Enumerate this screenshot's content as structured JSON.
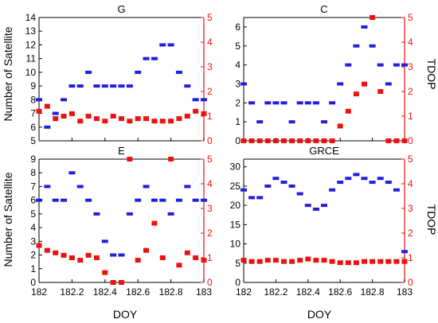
{
  "figure": {
    "shared_xlabel": "DOY",
    "left_ylabel": "Number of Satellite",
    "right_ylabel": "TDOP"
  },
  "colors": {
    "satellites": "#1f1fe0",
    "tdop": "#ee1111",
    "axis": "#000000"
  },
  "chart_data": [
    {
      "type": "scatter",
      "title": "G",
      "xlim": [
        182.0,
        183.0
      ],
      "ylim_left": [
        5,
        14
      ],
      "ylim_right": [
        0,
        5
      ],
      "yticks_left": [
        5,
        6,
        7,
        8,
        9,
        10,
        11,
        12,
        13,
        14
      ],
      "yticks_right": [
        0,
        1,
        2,
        3,
        4,
        5
      ],
      "xticks": [
        182.0,
        182.2,
        182.4,
        182.6,
        182.8,
        183.0
      ],
      "series": [
        {
          "axis": "left",
          "x": [
            182.0,
            182.05,
            182.1,
            182.15,
            182.2,
            182.25,
            182.3,
            182.35,
            182.4,
            182.45,
            182.5,
            182.55,
            182.6,
            182.65,
            182.7,
            182.75,
            182.8,
            182.85,
            182.9,
            182.95,
            183.0
          ],
          "values": [
            8,
            6,
            7,
            8,
            9,
            9,
            10,
            9,
            9,
            9,
            9,
            9,
            10,
            11,
            11,
            12,
            12,
            10,
            9,
            8,
            8
          ]
        },
        {
          "axis": "right",
          "x": [
            182.0,
            182.05,
            182.1,
            182.15,
            182.2,
            182.25,
            182.3,
            182.35,
            182.4,
            182.45,
            182.5,
            182.55,
            182.6,
            182.65,
            182.7,
            182.75,
            182.8,
            182.85,
            182.9,
            182.95,
            183.0
          ],
          "values": [
            1.2,
            1.4,
            0.9,
            1.0,
            1.1,
            0.8,
            1.0,
            0.9,
            0.8,
            1.0,
            0.9,
            0.8,
            0.9,
            0.9,
            0.8,
            0.8,
            0.8,
            0.9,
            1.0,
            1.2,
            1.1
          ]
        }
      ]
    },
    {
      "type": "scatter",
      "title": "C",
      "xlim": [
        182.0,
        183.0
      ],
      "ylim_left": [
        0,
        6.5
      ],
      "ylim_right": [
        0,
        5
      ],
      "yticks_left": [
        0,
        1,
        2,
        3,
        4,
        5,
        6
      ],
      "yticks_right": [
        0,
        1,
        2,
        3,
        4,
        5
      ],
      "xticks": [
        182.0,
        182.2,
        182.4,
        182.6,
        182.8,
        183.0
      ],
      "series": [
        {
          "axis": "left",
          "x": [
            182.0,
            182.05,
            182.1,
            182.15,
            182.2,
            182.25,
            182.3,
            182.35,
            182.4,
            182.45,
            182.5,
            182.55,
            182.6,
            182.65,
            182.7,
            182.75,
            182.8,
            182.85,
            182.9,
            182.95,
            183.0
          ],
          "values": [
            3,
            2,
            1,
            2,
            2,
            2,
            1,
            2,
            2,
            2,
            1,
            2,
            3,
            4,
            5,
            6,
            5,
            4,
            3,
            4,
            4
          ]
        },
        {
          "axis": "right",
          "x": [
            182.0,
            182.05,
            182.1,
            182.15,
            182.2,
            182.25,
            182.3,
            182.35,
            182.4,
            182.45,
            182.5,
            182.55,
            182.6,
            182.65,
            182.7,
            182.75,
            182.8,
            182.85,
            182.9,
            182.95,
            183.0
          ],
          "values": [
            0,
            0,
            0,
            0,
            0,
            0,
            0,
            0,
            0,
            0,
            0,
            0,
            0.6,
            1.2,
            1.9,
            2.3,
            5.0,
            2.0,
            0,
            0,
            0
          ]
        }
      ]
    },
    {
      "type": "scatter",
      "title": "E",
      "xlim": [
        182.0,
        183.0
      ],
      "ylim_left": [
        0,
        9
      ],
      "ylim_right": [
        0,
        5
      ],
      "yticks_left": [
        0,
        1,
        2,
        3,
        4,
        5,
        6,
        7,
        8,
        9
      ],
      "yticks_right": [
        0,
        1,
        2,
        3,
        4,
        5
      ],
      "xticks": [
        182.0,
        182.2,
        182.4,
        182.6,
        182.8,
        183.0
      ],
      "series": [
        {
          "axis": "left",
          "x": [
            182.0,
            182.05,
            182.1,
            182.15,
            182.2,
            182.25,
            182.3,
            182.35,
            182.4,
            182.45,
            182.5,
            182.55,
            182.6,
            182.65,
            182.7,
            182.75,
            182.8,
            182.85,
            182.9,
            182.95,
            183.0
          ],
          "values": [
            6,
            7,
            6,
            6,
            8,
            7,
            6,
            5,
            3,
            2,
            2,
            5,
            6,
            7,
            6,
            6,
            5,
            6,
            7,
            6,
            6
          ]
        },
        {
          "axis": "right",
          "x": [
            182.0,
            182.05,
            182.1,
            182.15,
            182.2,
            182.25,
            182.3,
            182.35,
            182.4,
            182.45,
            182.5,
            182.55,
            182.6,
            182.65,
            182.7,
            182.75,
            182.8,
            182.85,
            182.9,
            182.95,
            183.0
          ],
          "values": [
            1.5,
            1.3,
            1.2,
            1.1,
            1.0,
            0.9,
            1.1,
            1.0,
            0.4,
            0,
            0,
            5.0,
            0.9,
            1.3,
            2.4,
            1.0,
            5.0,
            0.7,
            1.2,
            1.0,
            0.9
          ]
        }
      ]
    },
    {
      "type": "scatter",
      "title": "GRCE",
      "xlim": [
        182.0,
        183.0
      ],
      "ylim_left": [
        0,
        32
      ],
      "ylim_right": [
        0,
        5
      ],
      "yticks_left": [
        0,
        5,
        10,
        15,
        20,
        25,
        30
      ],
      "yticks_right": [
        0,
        1,
        2,
        3,
        4,
        5
      ],
      "xticks": [
        182.0,
        182.2,
        182.4,
        182.6,
        182.8,
        183.0
      ],
      "series": [
        {
          "axis": "left",
          "x": [
            182.0,
            182.05,
            182.1,
            182.15,
            182.2,
            182.25,
            182.3,
            182.35,
            182.4,
            182.45,
            182.5,
            182.55,
            182.6,
            182.65,
            182.7,
            182.75,
            182.8,
            182.85,
            182.9,
            182.95,
            183.0
          ],
          "values": [
            24,
            22,
            22,
            25,
            27,
            26,
            25,
            23,
            20,
            19,
            20,
            24,
            26,
            27,
            28,
            27,
            26,
            27,
            26,
            24,
            8
          ]
        },
        {
          "axis": "right",
          "x": [
            182.0,
            182.05,
            182.1,
            182.15,
            182.2,
            182.25,
            182.3,
            182.35,
            182.4,
            182.45,
            182.5,
            182.55,
            182.6,
            182.65,
            182.7,
            182.75,
            182.8,
            182.85,
            182.9,
            182.95,
            183.0
          ],
          "values": [
            0.9,
            0.85,
            0.85,
            0.9,
            0.9,
            0.85,
            0.85,
            0.9,
            0.95,
            0.9,
            0.9,
            0.85,
            0.8,
            0.8,
            0.8,
            0.85,
            0.85,
            0.85,
            0.85,
            0.85,
            0.85
          ]
        }
      ]
    }
  ]
}
